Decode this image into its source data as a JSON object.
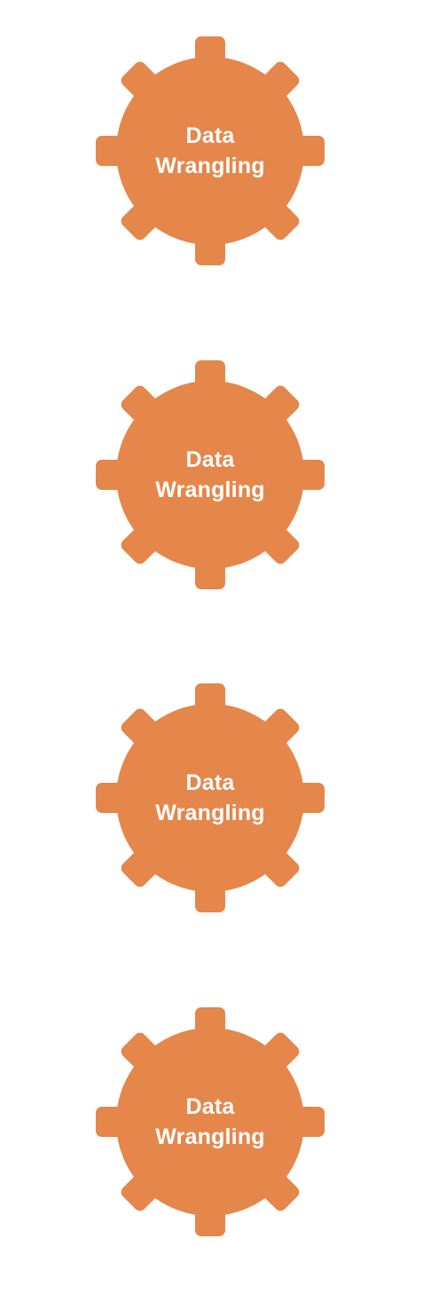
{
  "gear_color": "#E5864A",
  "gears": [
    {
      "line1": "Data",
      "line2": "Wrangling"
    },
    {
      "line1": "Data",
      "line2": "Wrangling"
    },
    {
      "line1": "Data",
      "line2": "Wrangling"
    },
    {
      "line1": "Data",
      "line2": "Wrangling"
    }
  ]
}
